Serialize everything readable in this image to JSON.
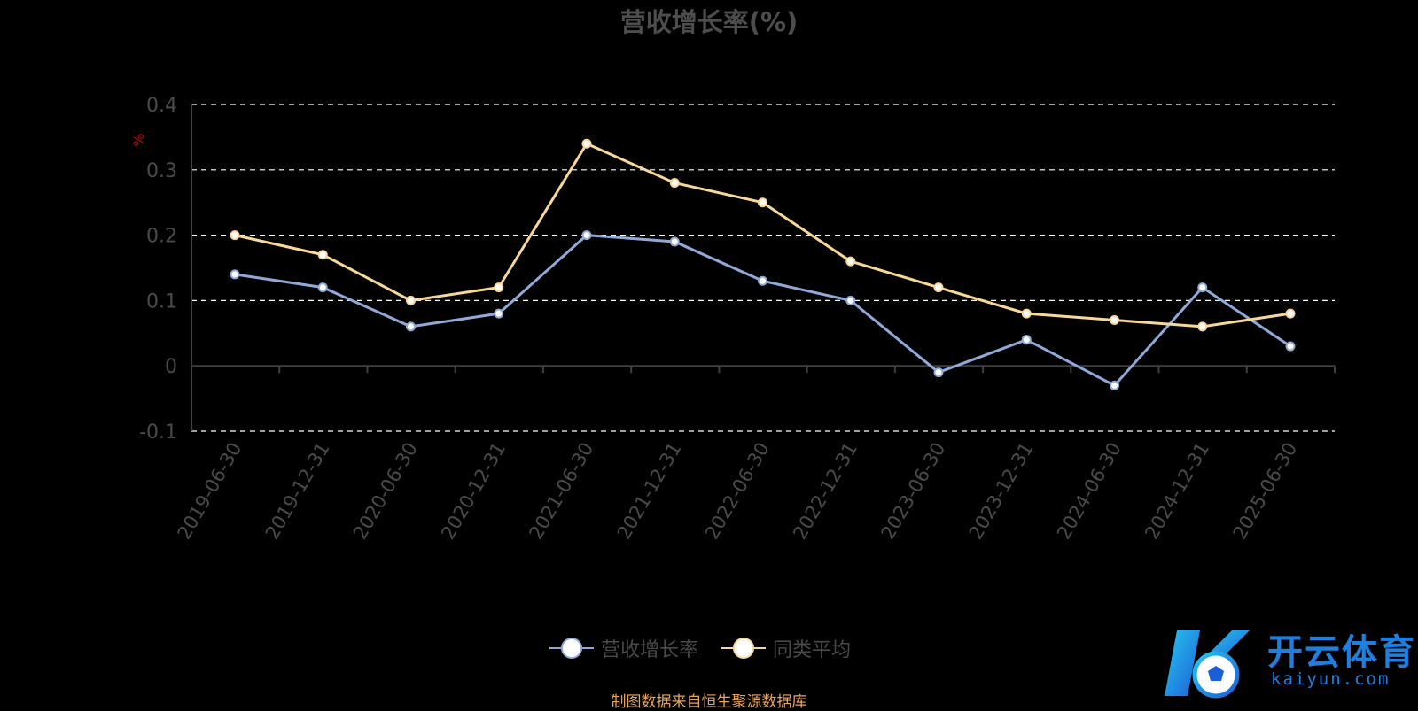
{
  "chart_data": {
    "type": "line",
    "title": "营收增长率(%)",
    "ylabel": "%",
    "xlabel": "",
    "ylim": [
      -0.1,
      0.4
    ],
    "yticks": [
      "0.4",
      "0.3",
      "0.2",
      "0.1",
      "0",
      "-0.1"
    ],
    "grid": true,
    "legend_position": "bottom",
    "categories": [
      "2019-06-30",
      "2019-12-31",
      "2020-06-30",
      "2020-12-31",
      "2021-06-30",
      "2021-12-31",
      "2022-06-30",
      "2022-12-31",
      "2023-06-30",
      "2023-12-31",
      "2024-06-30",
      "2024-12-31",
      "2025-06-30"
    ],
    "series": [
      {
        "name": "营收增长率",
        "color": "#91a9d8",
        "values": [
          0.14,
          0.12,
          0.06,
          0.08,
          0.2,
          0.19,
          0.13,
          0.1,
          -0.01,
          0.04,
          -0.03,
          0.12,
          0.03
        ]
      },
      {
        "name": "同类平均",
        "color": "#f8d898",
        "values": [
          0.2,
          0.17,
          0.1,
          0.12,
          0.34,
          0.28,
          0.25,
          0.16,
          0.12,
          0.08,
          0.07,
          0.06,
          0.08
        ]
      }
    ]
  },
  "footer": {
    "source_note": "制图数据来自恒生聚源数据库"
  },
  "watermark": {
    "brand": "开云体育",
    "domain": "kaiyun.com"
  },
  "colors": {
    "background": "#000000",
    "axis": "#3f3f3f",
    "grid": "#ffffff",
    "ylabel": "#cc0000",
    "tick_text": "#4a4a4a",
    "note": "#e8a55a"
  }
}
